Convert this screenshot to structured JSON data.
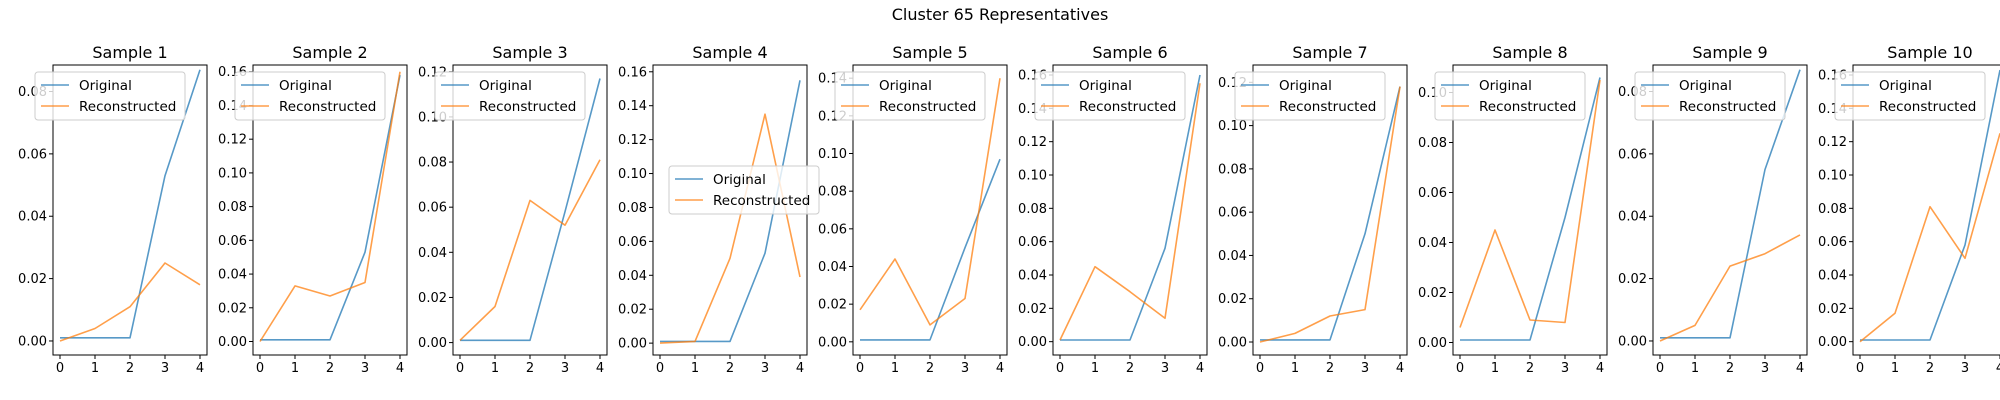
{
  "suptitle": "Cluster 65 Representatives",
  "colors": {
    "original": "#1f77b4",
    "reconstructed": "#ff7f0e"
  },
  "chart_data": [
    {
      "type": "line",
      "title": "Sample 1",
      "x": [
        0,
        1,
        2,
        3,
        4
      ],
      "ylim": [
        -0.0045,
        0.0885
      ],
      "yticks": [
        "0.00",
        "0.02",
        "0.04",
        "0.06",
        "0.08"
      ],
      "xticks": [
        "0",
        "1",
        "2",
        "3",
        "4"
      ],
      "legend": "top-left",
      "series": [
        {
          "name": "Original",
          "values": [
            0.001,
            0.001,
            0.001,
            0.053,
            0.087
          ]
        },
        {
          "name": "Reconstructed",
          "values": [
            0.0,
            0.004,
            0.011,
            0.025,
            0.018
          ]
        }
      ]
    },
    {
      "type": "line",
      "title": "Sample 2",
      "x": [
        0,
        1,
        2,
        3,
        4
      ],
      "ylim": [
        -0.008,
        0.164
      ],
      "yticks": [
        "0.00",
        "0.02",
        "0.04",
        "0.06",
        "0.08",
        "0.10",
        "0.12",
        "0.14",
        "0.16"
      ],
      "xticks": [
        "0",
        "1",
        "2",
        "3",
        "4"
      ],
      "legend": "top-left",
      "series": [
        {
          "name": "Original",
          "values": [
            0.001,
            0.001,
            0.001,
            0.053,
            0.158
          ]
        },
        {
          "name": "Reconstructed",
          "values": [
            0.0,
            0.033,
            0.027,
            0.035,
            0.16
          ]
        }
      ]
    },
    {
      "type": "line",
      "title": "Sample 3",
      "x": [
        0,
        1,
        2,
        3,
        4
      ],
      "ylim": [
        -0.0055,
        0.123
      ],
      "yticks": [
        "0.00",
        "0.02",
        "0.04",
        "0.06",
        "0.08",
        "0.10",
        "0.12"
      ],
      "xticks": [
        "0",
        "1",
        "2",
        "3",
        "4"
      ],
      "legend": "top-left",
      "series": [
        {
          "name": "Original",
          "values": [
            0.001,
            0.001,
            0.001,
            0.058,
            0.117
          ]
        },
        {
          "name": "Reconstructed",
          "values": [
            0.001,
            0.016,
            0.063,
            0.052,
            0.081
          ]
        }
      ]
    },
    {
      "type": "line",
      "title": "Sample 4",
      "x": [
        0,
        1,
        2,
        3,
        4
      ],
      "ylim": [
        -0.007,
        0.164
      ],
      "yticks": [
        "0.00",
        "0.02",
        "0.04",
        "0.06",
        "0.08",
        "0.10",
        "0.12",
        "0.14",
        "0.16"
      ],
      "xticks": [
        "0",
        "1",
        "2",
        "3",
        "4"
      ],
      "legend": "center",
      "series": [
        {
          "name": "Original",
          "values": [
            0.001,
            0.001,
            0.001,
            0.053,
            0.155
          ]
        },
        {
          "name": "Reconstructed",
          "values": [
            0.0,
            0.001,
            0.05,
            0.135,
            0.039
          ]
        }
      ]
    },
    {
      "type": "line",
      "title": "Sample 5",
      "x": [
        0,
        1,
        2,
        3,
        4
      ],
      "ylim": [
        -0.007,
        0.147
      ],
      "yticks": [
        "0.00",
        "0.02",
        "0.04",
        "0.06",
        "0.08",
        "0.10",
        "0.12",
        "0.14"
      ],
      "xticks": [
        "0",
        "1",
        "2",
        "3",
        "4"
      ],
      "legend": "top-left",
      "series": [
        {
          "name": "Original",
          "values": [
            0.001,
            0.001,
            0.001,
            0.05,
            0.097
          ]
        },
        {
          "name": "Reconstructed",
          "values": [
            0.017,
            0.044,
            0.009,
            0.023,
            0.14
          ]
        }
      ]
    },
    {
      "type": "line",
      "title": "Sample 6",
      "x": [
        0,
        1,
        2,
        3,
        4
      ],
      "ylim": [
        -0.008,
        0.166
      ],
      "yticks": [
        "0.00",
        "0.02",
        "0.04",
        "0.06",
        "0.08",
        "0.10",
        "0.12",
        "0.14",
        "0.16"
      ],
      "xticks": [
        "0",
        "1",
        "2",
        "3",
        "4"
      ],
      "legend": "top-left",
      "series": [
        {
          "name": "Original",
          "values": [
            0.001,
            0.001,
            0.001,
            0.056,
            0.16
          ]
        },
        {
          "name": "Reconstructed",
          "values": [
            0.001,
            0.045,
            0.03,
            0.014,
            0.155
          ]
        }
      ]
    },
    {
      "type": "line",
      "title": "Sample 7",
      "x": [
        0,
        1,
        2,
        3,
        4
      ],
      "ylim": [
        -0.006,
        0.128
      ],
      "yticks": [
        "0.00",
        "0.02",
        "0.04",
        "0.06",
        "0.08",
        "0.10",
        "0.12"
      ],
      "xticks": [
        "0",
        "1",
        "2",
        "3",
        "4"
      ],
      "legend": "top-left",
      "series": [
        {
          "name": "Original",
          "values": [
            0.001,
            0.001,
            0.001,
            0.05,
            0.118
          ]
        },
        {
          "name": "Reconstructed",
          "values": [
            0.0,
            0.004,
            0.012,
            0.015,
            0.118
          ]
        }
      ]
    },
    {
      "type": "line",
      "title": "Sample 8",
      "x": [
        0,
        1,
        2,
        3,
        4
      ],
      "ylim": [
        -0.005,
        0.111
      ],
      "yticks": [
        "0.00",
        "0.02",
        "0.04",
        "0.06",
        "0.08",
        "0.10"
      ],
      "xticks": [
        "0",
        "1",
        "2",
        "3",
        "4"
      ],
      "legend": "top-left",
      "series": [
        {
          "name": "Original",
          "values": [
            0.001,
            0.001,
            0.001,
            0.05,
            0.106
          ]
        },
        {
          "name": "Reconstructed",
          "values": [
            0.006,
            0.045,
            0.009,
            0.008,
            0.105
          ]
        }
      ]
    },
    {
      "type": "line",
      "title": "Sample 9",
      "x": [
        0,
        1,
        2,
        3,
        4
      ],
      "ylim": [
        -0.0045,
        0.0885
      ],
      "yticks": [
        "0.00",
        "0.02",
        "0.04",
        "0.06",
        "0.08"
      ],
      "xticks": [
        "0",
        "1",
        "2",
        "3",
        "4"
      ],
      "legend": "top-left",
      "series": [
        {
          "name": "Original",
          "values": [
            0.001,
            0.001,
            0.001,
            0.055,
            0.087
          ]
        },
        {
          "name": "Reconstructed",
          "values": [
            0.0,
            0.005,
            0.024,
            0.028,
            0.034
          ]
        }
      ]
    },
    {
      "type": "line",
      "title": "Sample 10",
      "x": [
        0,
        1,
        2,
        3,
        4
      ],
      "ylim": [
        -0.008,
        0.166
      ],
      "yticks": [
        "0.00",
        "0.02",
        "0.04",
        "0.06",
        "0.08",
        "0.10",
        "0.12",
        "0.14",
        "0.16"
      ],
      "xticks": [
        "0",
        "1",
        "2",
        "3",
        "4"
      ],
      "legend": "top-left",
      "series": [
        {
          "name": "Original",
          "values": [
            0.001,
            0.001,
            0.001,
            0.058,
            0.163
          ]
        },
        {
          "name": "Reconstructed",
          "values": [
            0.0,
            0.017,
            0.081,
            0.05,
            0.125
          ]
        }
      ]
    }
  ]
}
